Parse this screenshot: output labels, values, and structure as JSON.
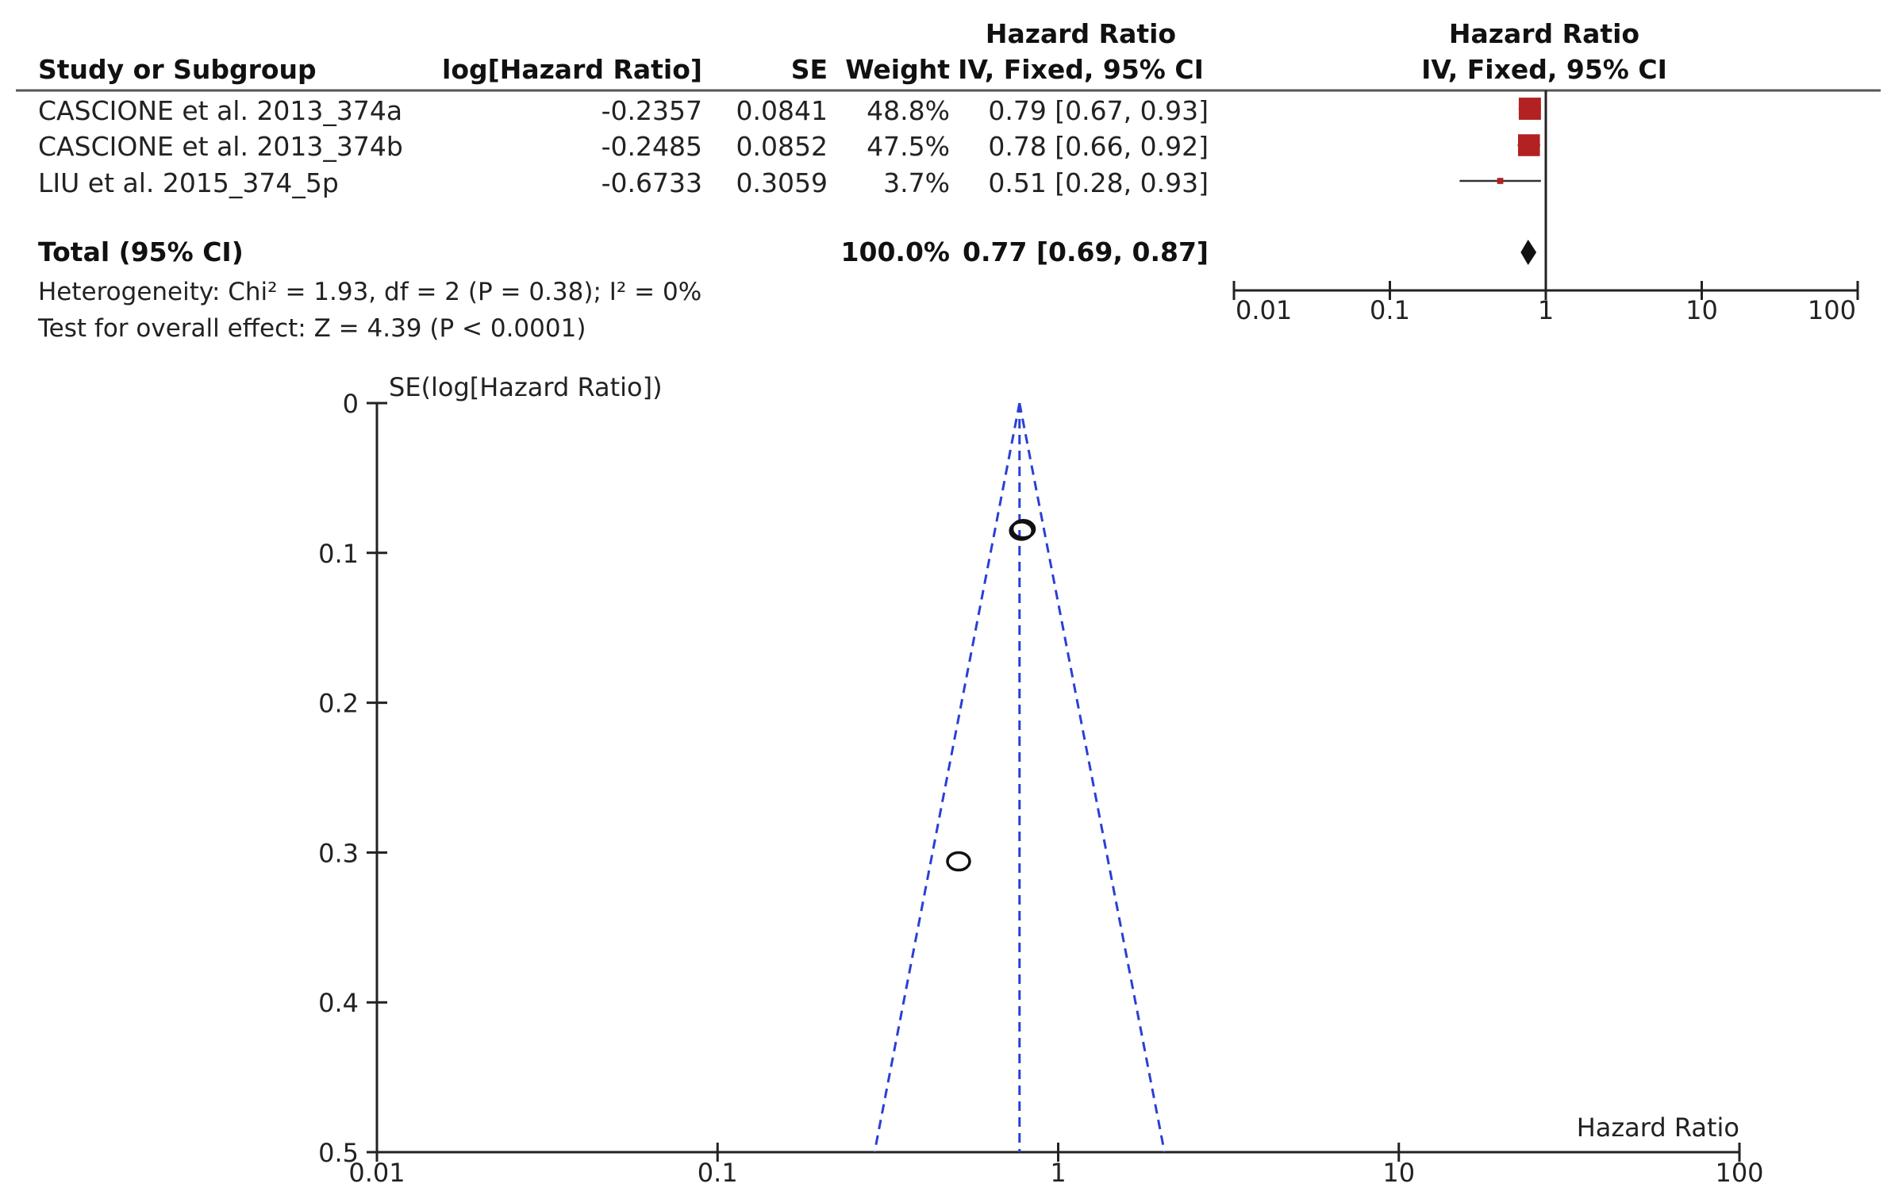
{
  "forest": {
    "header": {
      "col_study": "Study or Subgroup",
      "col_loghr": "log[Hazard Ratio]",
      "col_se": "SE",
      "col_weight": "Weight",
      "col_hr_top": "Hazard Ratio",
      "col_hr_sub": "IV, Fixed, 95% CI",
      "plot_top": "Hazard Ratio",
      "plot_sub": "IV, Fixed, 95% CI"
    },
    "rows": [
      {
        "study": "CASCIONE et al. 2013_374a",
        "loghr": "-0.2357",
        "se": "0.0841",
        "weight": "48.8%",
        "ci": "0.79 [0.67, 0.93]"
      },
      {
        "study": "CASCIONE et al. 2013_374b",
        "loghr": "-0.2485",
        "se": "0.0852",
        "weight": "47.5%",
        "ci": "0.78 [0.66, 0.92]"
      },
      {
        "study": "LIU et al. 2015_374_5p",
        "loghr": "-0.6733",
        "se": "0.3059",
        "weight": "3.7%",
        "ci": "0.51 [0.28, 0.93]"
      }
    ],
    "total": {
      "label": "Total (95% CI)",
      "weight": "100.0%",
      "ci": "0.77 [0.69, 0.87]"
    },
    "heterogeneity": "Heterogeneity: Chi² = 1.93, df = 2 (P = 0.38); I² = 0%",
    "overall_effect": "Test for overall effect: Z = 4.39 (P < 0.0001)",
    "axis_ticks": [
      "0.01",
      "0.1",
      "1",
      "10",
      "100"
    ]
  },
  "funnel": {
    "ylabel": "SE(log[Hazard Ratio])",
    "xlabel": "Hazard Ratio",
    "y_ticks": [
      "0",
      "0.1",
      "0.2",
      "0.3",
      "0.4",
      "0.5"
    ],
    "x_ticks": [
      "0.01",
      "0.1",
      "1",
      "10",
      "100"
    ]
  },
  "chart_data": [
    {
      "type": "forest",
      "studies": [
        "CASCIONE et al. 2013_374a",
        "CASCIONE et al. 2013_374b",
        "LIU et al. 2015_374_5p"
      ],
      "hr": [
        0.79,
        0.78,
        0.51
      ],
      "ci_low": [
        0.67,
        0.66,
        0.28
      ],
      "ci_high": [
        0.93,
        0.92,
        0.93
      ],
      "weight_pct": [
        48.8,
        47.5,
        3.7
      ],
      "pooled": {
        "hr": 0.77,
        "ci_low": 0.69,
        "ci_high": 0.87
      },
      "x_scale": "log",
      "xlim": [
        0.01,
        100
      ],
      "marker_color": "#b22222"
    },
    {
      "type": "scatter",
      "subtype": "funnel",
      "x_scale": "log",
      "xlim": [
        0.01,
        100
      ],
      "ylim": [
        0.5,
        0
      ],
      "y_inverted": true,
      "xlabel": "Hazard Ratio",
      "ylabel": "SE(log[Hazard Ratio])",
      "points": [
        {
          "hr": 0.79,
          "se": 0.0841
        },
        {
          "hr": 0.78,
          "se": 0.0852
        },
        {
          "hr": 0.51,
          "se": 0.3059
        }
      ],
      "pooled_hr": 0.77,
      "funnel_color": "#2a3fd6"
    }
  ]
}
